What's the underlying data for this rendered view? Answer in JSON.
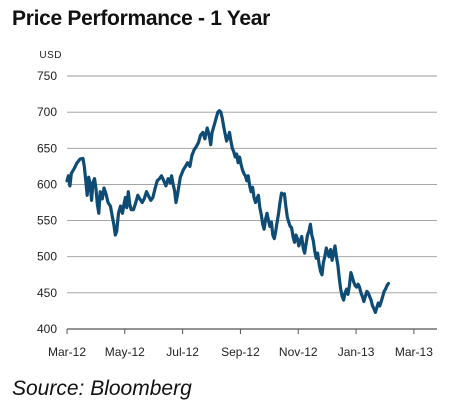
{
  "title": "Price Performance - 1 Year",
  "source": "Source: Bloomberg",
  "chart_data": {
    "type": "line",
    "title": "Price Performance - 1 Year",
    "unit": "USD",
    "xlabel": "",
    "ylabel": "",
    "ylim": [
      400,
      750
    ],
    "yticks": [
      400,
      450,
      500,
      550,
      600,
      650,
      700,
      750
    ],
    "xlim": [
      0,
      12.8
    ],
    "xticks": [
      {
        "label": "Mar-12",
        "x": 0
      },
      {
        "label": "May-12",
        "x": 2
      },
      {
        "label": "Jul-12",
        "x": 4
      },
      {
        "label": "Sep-12",
        "x": 6
      },
      {
        "label": "Nov-12",
        "x": 8
      },
      {
        "label": "Jan-13",
        "x": 10
      },
      {
        "label": "Mar-13",
        "x": 12
      }
    ],
    "grid": true,
    "line_color": "#0f4c75",
    "series": [
      {
        "name": "",
        "points": [
          [
            0.0,
            605
          ],
          [
            0.05,
            612
          ],
          [
            0.1,
            598
          ],
          [
            0.15,
            615
          ],
          [
            0.25,
            622
          ],
          [
            0.35,
            630
          ],
          [
            0.45,
            635
          ],
          [
            0.55,
            636
          ],
          [
            0.6,
            625
          ],
          [
            0.65,
            605
          ],
          [
            0.7,
            585
          ],
          [
            0.75,
            610
          ],
          [
            0.8,
            600
          ],
          [
            0.85,
            578
          ],
          [
            0.9,
            603
          ],
          [
            0.95,
            608
          ],
          [
            1.0,
            595
          ],
          [
            1.05,
            572
          ],
          [
            1.1,
            560
          ],
          [
            1.15,
            590
          ],
          [
            1.22,
            580
          ],
          [
            1.28,
            595
          ],
          [
            1.35,
            587
          ],
          [
            1.42,
            575
          ],
          [
            1.5,
            570
          ],
          [
            1.57,
            555
          ],
          [
            1.62,
            545
          ],
          [
            1.67,
            530
          ],
          [
            1.72,
            535
          ],
          [
            1.78,
            560
          ],
          [
            1.85,
            570
          ],
          [
            1.92,
            560
          ],
          [
            1.97,
            572
          ],
          [
            2.02,
            582
          ],
          [
            2.07,
            568
          ],
          [
            2.12,
            590
          ],
          [
            2.17,
            573
          ],
          [
            2.22,
            565
          ],
          [
            2.3,
            565
          ],
          [
            2.38,
            575
          ],
          [
            2.45,
            585
          ],
          [
            2.52,
            580
          ],
          [
            2.6,
            575
          ],
          [
            2.67,
            580
          ],
          [
            2.75,
            590
          ],
          [
            2.82,
            584
          ],
          [
            2.9,
            578
          ],
          [
            2.97,
            582
          ],
          [
            3.05,
            595
          ],
          [
            3.12,
            605
          ],
          [
            3.2,
            608
          ],
          [
            3.27,
            612
          ],
          [
            3.35,
            605
          ],
          [
            3.42,
            598
          ],
          [
            3.5,
            608
          ],
          [
            3.57,
            602
          ],
          [
            3.62,
            612
          ],
          [
            3.67,
            600
          ],
          [
            3.72,
            592
          ],
          [
            3.77,
            575
          ],
          [
            3.82,
            585
          ],
          [
            3.87,
            598
          ],
          [
            3.92,
            610
          ],
          [
            3.97,
            615
          ],
          [
            4.02,
            620
          ],
          [
            4.1,
            625
          ],
          [
            4.17,
            630
          ],
          [
            4.25,
            625
          ],
          [
            4.32,
            640
          ],
          [
            4.4,
            648
          ],
          [
            4.47,
            652
          ],
          [
            4.55,
            658
          ],
          [
            4.62,
            668
          ],
          [
            4.7,
            672
          ],
          [
            4.77,
            663
          ],
          [
            4.85,
            678
          ],
          [
            4.92,
            668
          ],
          [
            4.97,
            655
          ],
          [
            5.02,
            672
          ],
          [
            5.1,
            683
          ],
          [
            5.17,
            693
          ],
          [
            5.22,
            700
          ],
          [
            5.27,
            702
          ],
          [
            5.32,
            700
          ],
          [
            5.37,
            692
          ],
          [
            5.42,
            680
          ],
          [
            5.47,
            670
          ],
          [
            5.52,
            660
          ],
          [
            5.57,
            665
          ],
          [
            5.62,
            672
          ],
          [
            5.67,
            660
          ],
          [
            5.72,
            650
          ],
          [
            5.77,
            645
          ],
          [
            5.82,
            638
          ],
          [
            5.87,
            642
          ],
          [
            5.92,
            630
          ],
          [
            5.97,
            638
          ],
          [
            6.02,
            628
          ],
          [
            6.07,
            620
          ],
          [
            6.12,
            615
          ],
          [
            6.17,
            612
          ],
          [
            6.22,
            605
          ],
          [
            6.27,
            612
          ],
          [
            6.32,
            598
          ],
          [
            6.37,
            590
          ],
          [
            6.42,
            596
          ],
          [
            6.47,
            582
          ],
          [
            6.52,
            575
          ],
          [
            6.57,
            580
          ],
          [
            6.62,
            585
          ],
          [
            6.67,
            568
          ],
          [
            6.72,
            558
          ],
          [
            6.77,
            545
          ],
          [
            6.82,
            538
          ],
          [
            6.87,
            552
          ],
          [
            6.92,
            560
          ],
          [
            6.97,
            550
          ],
          [
            7.02,
            542
          ],
          [
            7.07,
            548
          ],
          [
            7.12,
            530
          ],
          [
            7.17,
            525
          ],
          [
            7.22,
            535
          ],
          [
            7.27,
            548
          ],
          [
            7.32,
            560
          ],
          [
            7.37,
            575
          ],
          [
            7.42,
            588
          ],
          [
            7.47,
            586
          ],
          [
            7.52,
            587
          ],
          [
            7.57,
            570
          ],
          [
            7.62,
            555
          ],
          [
            7.67,
            548
          ],
          [
            7.72,
            542
          ],
          [
            7.77,
            540
          ],
          [
            7.82,
            528
          ],
          [
            7.87,
            520
          ],
          [
            7.92,
            530
          ],
          [
            7.97,
            525
          ],
          [
            8.02,
            515
          ],
          [
            8.07,
            522
          ],
          [
            8.12,
            528
          ],
          [
            8.17,
            512
          ],
          [
            8.22,
            505
          ],
          [
            8.27,
            518
          ],
          [
            8.32,
            530
          ],
          [
            8.37,
            535
          ],
          [
            8.42,
            545
          ],
          [
            8.47,
            530
          ],
          [
            8.52,
            522
          ],
          [
            8.57,
            508
          ],
          [
            8.62,
            498
          ],
          [
            8.67,
            505
          ],
          [
            8.72,
            490
          ],
          [
            8.77,
            480
          ],
          [
            8.82,
            475
          ],
          [
            8.87,
            492
          ],
          [
            8.92,
            500
          ],
          [
            8.97,
            512
          ],
          [
            9.02,
            505
          ],
          [
            9.07,
            500
          ],
          [
            9.12,
            510
          ],
          [
            9.17,
            495
          ],
          [
            9.22,
            505
          ],
          [
            9.27,
            515
          ],
          [
            9.32,
            500
          ],
          [
            9.37,
            488
          ],
          [
            9.42,
            470
          ],
          [
            9.47,
            455
          ],
          [
            9.52,
            445
          ],
          [
            9.57,
            440
          ],
          [
            9.62,
            450
          ],
          [
            9.67,
            455
          ],
          [
            9.72,
            448
          ],
          [
            9.77,
            460
          ],
          [
            9.82,
            478
          ],
          [
            9.87,
            472
          ],
          [
            9.92,
            465
          ],
          [
            9.97,
            460
          ],
          [
            10.02,
            458
          ],
          [
            10.07,
            462
          ],
          [
            10.12,
            458
          ],
          [
            10.17,
            450
          ],
          [
            10.22,
            445
          ],
          [
            10.27,
            438
          ],
          [
            10.32,
            445
          ],
          [
            10.37,
            452
          ],
          [
            10.42,
            450
          ],
          [
            10.47,
            445
          ],
          [
            10.52,
            440
          ],
          [
            10.57,
            432
          ],
          [
            10.62,
            428
          ],
          [
            10.67,
            423
          ],
          [
            10.72,
            430
          ],
          [
            10.77,
            436
          ],
          [
            10.82,
            432
          ],
          [
            10.87,
            438
          ],
          [
            10.92,
            445
          ],
          [
            10.97,
            452
          ],
          [
            11.02,
            455
          ],
          [
            11.07,
            460
          ],
          [
            11.12,
            463
          ]
        ]
      }
    ]
  }
}
